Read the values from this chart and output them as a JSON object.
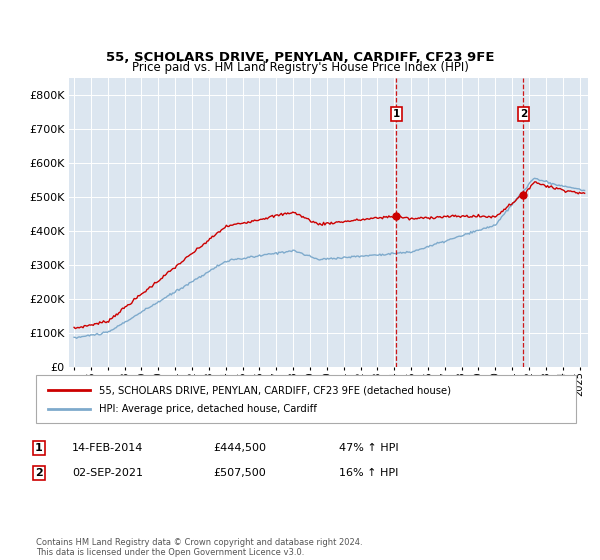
{
  "title": "55, SCHOLARS DRIVE, PENYLAN, CARDIFF, CF23 9FE",
  "subtitle": "Price paid vs. HM Land Registry's House Price Index (HPI)",
  "ylim": [
    0,
    850000
  ],
  "yticks": [
    0,
    100000,
    200000,
    300000,
    400000,
    500000,
    600000,
    700000,
    800000
  ],
  "ytick_labels": [
    "£0",
    "£100K",
    "£200K",
    "£300K",
    "£400K",
    "£500K",
    "£600K",
    "£700K",
    "£800K"
  ],
  "background_color": "#ffffff",
  "plot_bg_color": "#dce6f0",
  "grid_color": "#ffffff",
  "legend_entries": [
    "55, SCHOLARS DRIVE, PENYLAN, CARDIFF, CF23 9FE (detached house)",
    "HPI: Average price, detached house, Cardiff"
  ],
  "legend_colors": [
    "#cc0000",
    "#7eaacc"
  ],
  "transaction1": {
    "label": "1",
    "date": "14-FEB-2014",
    "price_str": "£444,500",
    "change": "47% ↑ HPI",
    "x_year": 2014.12,
    "price": 444500
  },
  "transaction2": {
    "label": "2",
    "date": "02-SEP-2021",
    "price_str": "£507,500",
    "change": "16% ↑ HPI",
    "x_year": 2021.67,
    "price": 507500
  },
  "footer": "Contains HM Land Registry data © Crown copyright and database right 2024.\nThis data is licensed under the Open Government Licence v3.0.",
  "hpi_color": "#7eaacc",
  "price_color": "#cc0000",
  "vline_color": "#cc0000",
  "box_color": "#cc0000",
  "xlim_left": 1994.7,
  "xlim_right": 2025.5
}
